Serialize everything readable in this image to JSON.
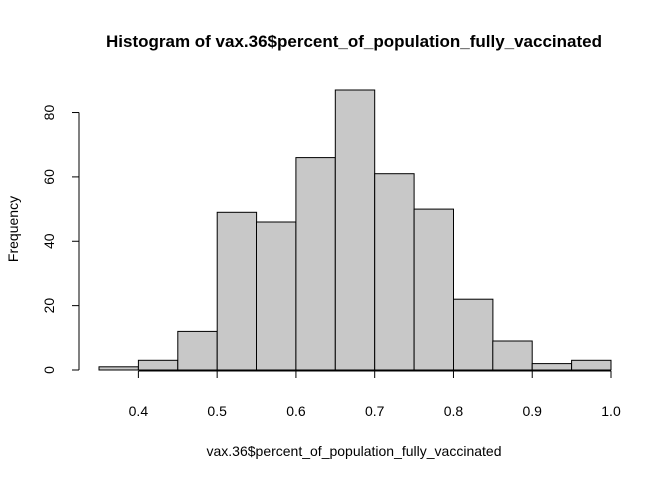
{
  "chart_data": {
    "type": "bar",
    "title": "Histogram of vax.36$percent_of_population_fully_vaccinated",
    "xlabel": "vax.36$percent_of_population_fully_vaccinated",
    "ylabel": "Frequency",
    "bins": [
      {
        "from": 0.35,
        "to": 0.4,
        "count": 1
      },
      {
        "from": 0.4,
        "to": 0.45,
        "count": 3
      },
      {
        "from": 0.45,
        "to": 0.5,
        "count": 12
      },
      {
        "from": 0.5,
        "to": 0.55,
        "count": 49
      },
      {
        "from": 0.55,
        "to": 0.6,
        "count": 46
      },
      {
        "from": 0.6,
        "to": 0.65,
        "count": 66
      },
      {
        "from": 0.65,
        "to": 0.7,
        "count": 87
      },
      {
        "from": 0.7,
        "to": 0.75,
        "count": 61
      },
      {
        "from": 0.75,
        "to": 0.8,
        "count": 50
      },
      {
        "from": 0.8,
        "to": 0.85,
        "count": 22
      },
      {
        "from": 0.85,
        "to": 0.9,
        "count": 9
      },
      {
        "from": 0.9,
        "to": 0.95,
        "count": 2
      },
      {
        "from": 0.95,
        "to": 1.0,
        "count": 3
      }
    ],
    "xlim": [
      0.35,
      1.0
    ],
    "ylim": [
      0,
      87
    ],
    "x_ticks": [
      0.4,
      0.5,
      0.6,
      0.7,
      0.8,
      0.9,
      1.0
    ],
    "x_tick_labels": [
      "0.4",
      "0.5",
      "0.6",
      "0.7",
      "0.8",
      "0.9",
      "1.0"
    ],
    "y_ticks": [
      0,
      20,
      40,
      60,
      80
    ],
    "y_tick_labels": [
      "0",
      "20",
      "40",
      "60",
      "80"
    ],
    "bar_color": "#c8c8c8",
    "edge_color": "#000000",
    "grid": false,
    "legend": "none"
  }
}
